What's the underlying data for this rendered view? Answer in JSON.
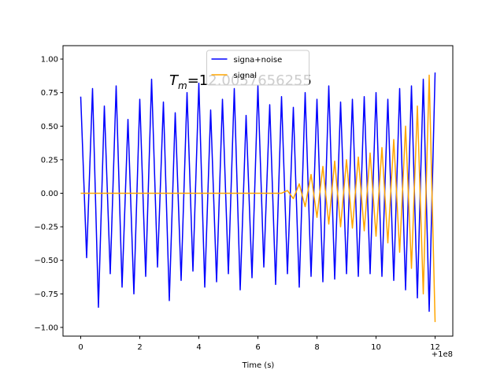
{
  "chart_data": {
    "type": "line",
    "annotation": {
      "symbol": "T",
      "subscript": "m",
      "text": "=12.0057656255"
    },
    "x_label": "Time (s)",
    "x_offset_label": "+1e8",
    "x": [
      0,
      0.2,
      0.4,
      0.6,
      0.8,
      1,
      1.2,
      1.4,
      1.6,
      1.8,
      2,
      2.2,
      2.4,
      2.6,
      2.8,
      3,
      3.2,
      3.4,
      3.6,
      3.8,
      4,
      4.2,
      4.4,
      4.6,
      4.8,
      5,
      5.2,
      5.4,
      5.6,
      5.8,
      6,
      6.2,
      6.4,
      6.6,
      6.8,
      7,
      7.2,
      7.4,
      7.6,
      7.8,
      8,
      8.2,
      8.4,
      8.6,
      8.8,
      9,
      9.2,
      9.4,
      9.6,
      9.8,
      10,
      10.2,
      10.4,
      10.6,
      10.8,
      11,
      11.2,
      11.4,
      11.6,
      11.8,
      12
    ],
    "series": [
      {
        "name": "signa+noise",
        "color": "#0000ff",
        "values": [
          0.72,
          -0.48,
          0.78,
          -0.85,
          0.65,
          -0.6,
          0.8,
          -0.7,
          0.55,
          -0.75,
          0.7,
          -0.62,
          0.85,
          -0.55,
          0.68,
          -0.8,
          0.6,
          -0.65,
          0.75,
          -0.58,
          0.82,
          -0.7,
          0.62,
          -0.66,
          0.7,
          -0.6,
          0.78,
          -0.72,
          0.58,
          -0.63,
          0.8,
          -0.55,
          0.66,
          -0.68,
          0.72,
          -0.6,
          0.64,
          -0.7,
          0.75,
          -0.62,
          0.7,
          -0.66,
          0.8,
          -0.64,
          0.68,
          -0.6,
          0.7,
          -0.62,
          0.72,
          -0.6,
          0.75,
          -0.62,
          0.7,
          -0.65,
          0.78,
          -0.72,
          0.8,
          -0.78,
          0.85,
          -0.88,
          0.9
        ]
      },
      {
        "name": "signal",
        "color": "#ffa500",
        "values": [
          0,
          0,
          0,
          0,
          0,
          0,
          0,
          0,
          0,
          0,
          0,
          0,
          0,
          0,
          0,
          0,
          0,
          0,
          0,
          0,
          0,
          0,
          0,
          0,
          0,
          0,
          0,
          0,
          0,
          0,
          0,
          0,
          0,
          0,
          0,
          0.02,
          -0.04,
          0.07,
          -0.1,
          0.14,
          -0.18,
          0.2,
          -0.23,
          0.24,
          -0.25,
          0.25,
          -0.26,
          0.27,
          -0.28,
          0.3,
          -0.32,
          0.34,
          -0.37,
          0.4,
          -0.44,
          0.5,
          -0.56,
          0.65,
          -0.75,
          0.88,
          -0.96
        ]
      }
    ],
    "xlim": [
      -0.6,
      12.6
    ],
    "ylim": [
      -1.065,
      1.1
    ],
    "xticks": [
      0,
      2,
      4,
      6,
      8,
      10,
      12
    ],
    "yticks": [
      {
        "value": -1,
        "label": "−1.00"
      },
      {
        "value": -0.75,
        "label": "−0.75"
      },
      {
        "value": -0.5,
        "label": "−0.50"
      },
      {
        "value": -0.25,
        "label": "−0.25"
      },
      {
        "value": 0,
        "label": "0.00"
      },
      {
        "value": 0.25,
        "label": "0.25"
      },
      {
        "value": 0.5,
        "label": "0.50"
      },
      {
        "value": 0.75,
        "label": "0.75"
      },
      {
        "value": 1,
        "label": "1.00"
      }
    ],
    "legend": "upper center",
    "grid": false
  }
}
